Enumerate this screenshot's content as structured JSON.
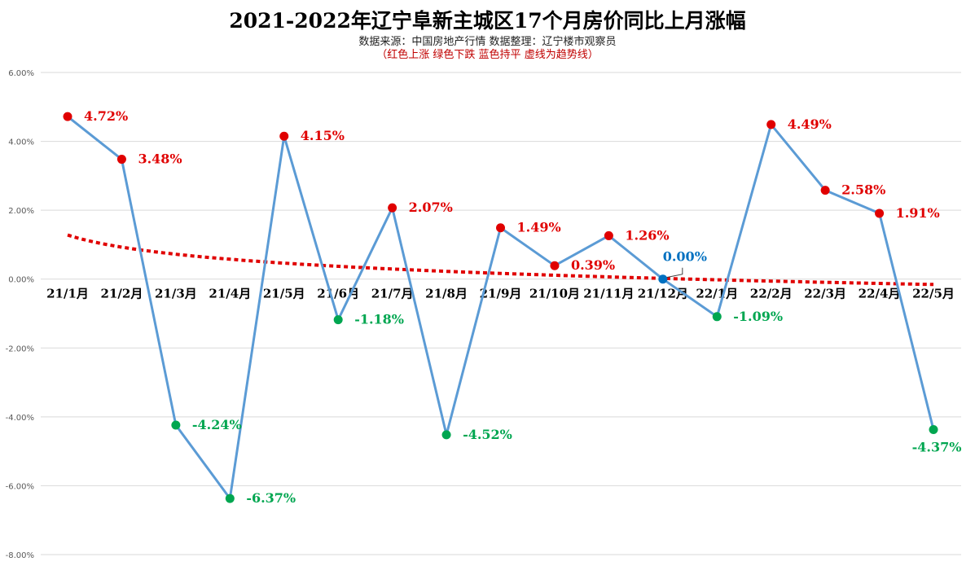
{
  "title": "2021-2022年辽宁阜新主城区17个月房价同比上月涨幅",
  "subtitle": "数据来源：中国房地产行情 数据整理：辽宁楼市观察员",
  "note": "（红色上涨  绿色下跌   蓝色持平   虚线为趋势线）",
  "colors": {
    "up": "#e00000",
    "down": "#00a650",
    "flat": "#0070c0",
    "line": "#5b9bd5",
    "trend": "#e00000",
    "grid": "#d9d9d9",
    "axis_text": "#595959"
  },
  "chart_data": {
    "type": "line",
    "title": "2021-2022年辽宁阜新主城区17个月房价同比上月涨幅",
    "categories": [
      "21/1月",
      "21/2月",
      "21/3月",
      "21/4月",
      "21/5月",
      "21/6月",
      "21/7月",
      "21/8月",
      "21/9月",
      "21/10月",
      "21/11月",
      "21/12月",
      "22/1月",
      "22/2月",
      "22/3月",
      "22/4月",
      "22/5月"
    ],
    "values": [
      4.72,
      3.48,
      -4.24,
      -6.37,
      4.15,
      -1.18,
      2.07,
      -4.52,
      1.49,
      0.39,
      1.26,
      0.0,
      -1.09,
      4.49,
      2.58,
      1.91,
      -4.37
    ],
    "data_labels": [
      "4.72%",
      "3.48%",
      "-4.24%",
      "-6.37%",
      "4.15%",
      "-1.18%",
      "2.07%",
      "-4.52%",
      "1.49%",
      "0.39%",
      "1.26%",
      "0.00%",
      "-1.09%",
      "4.49%",
      "2.58%",
      "1.91%",
      "-4.37%"
    ],
    "ylim": [
      -8,
      6
    ],
    "yticks": [
      6,
      4,
      2,
      0,
      -2,
      -4,
      -6,
      -8
    ],
    "ytick_labels": [
      "6.00%",
      "4.00%",
      "2.00%",
      "0.00%",
      "-2.00%",
      "-4.00%",
      "-6.00%",
      "-8.00%"
    ],
    "trendline": "logarithmic, dashed",
    "grid": true,
    "legend": "none"
  }
}
